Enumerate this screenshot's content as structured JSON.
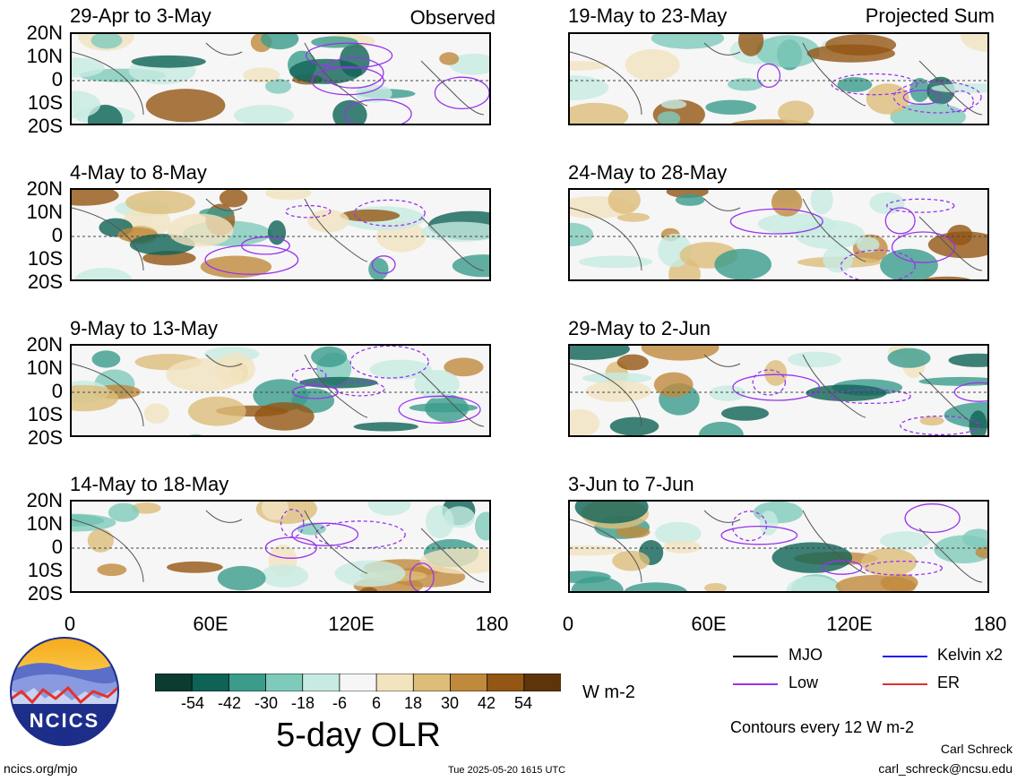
{
  "panels_left": [
    {
      "title": "29-Apr to 3-May",
      "tag": "Observed"
    },
    {
      "title": "4-May to 8-May",
      "tag": ""
    },
    {
      "title": "9-May to 13-May",
      "tag": ""
    },
    {
      "title": "14-May to 18-May",
      "tag": ""
    }
  ],
  "panels_right": [
    {
      "title": "19-May to 23-May",
      "tag": "Projected Sum"
    },
    {
      "title": "24-May to 28-May",
      "tag": ""
    },
    {
      "title": "29-May to 2-Jun",
      "tag": ""
    },
    {
      "title": "3-Jun to 7-Jun",
      "tag": ""
    }
  ],
  "lat_labels": [
    "20N",
    "10N",
    "0",
    "10S",
    "20S"
  ],
  "lon_labels": [
    "0",
    "60E",
    "120E",
    "180"
  ],
  "colorbar": {
    "labels": [
      "-54",
      "-42",
      "-30",
      "-18",
      "-6",
      "6",
      "18",
      "30",
      "42",
      "54"
    ],
    "colors": [
      "#0b3b31",
      "#0f6356",
      "#3b9c8c",
      "#7fcbbb",
      "#c7ebe2",
      "#f6f6f6",
      "#f3e4c0",
      "#ddbd7a",
      "#c08a3c",
      "#935614",
      "#5e340a"
    ],
    "units": "W m-2",
    "title": "5-day OLR"
  },
  "legend": {
    "mjo": "MJO",
    "kelvin": "Kelvin x2",
    "low": "Low",
    "er": "ER",
    "contour_note": "Contours every 12 W m-2",
    "colors": {
      "mjo": "#000000",
      "kelvin": "#1a1aff",
      "low": "#9933ee",
      "er": "#e03030"
    }
  },
  "logo_text": "NCICS",
  "footer": {
    "url": "ncics.org/mjo",
    "timestamp": "Tue 2025-05-20 1615 UTC",
    "author": "Carl Schreck",
    "email": "carl_schreck@ncsu.edu"
  }
}
